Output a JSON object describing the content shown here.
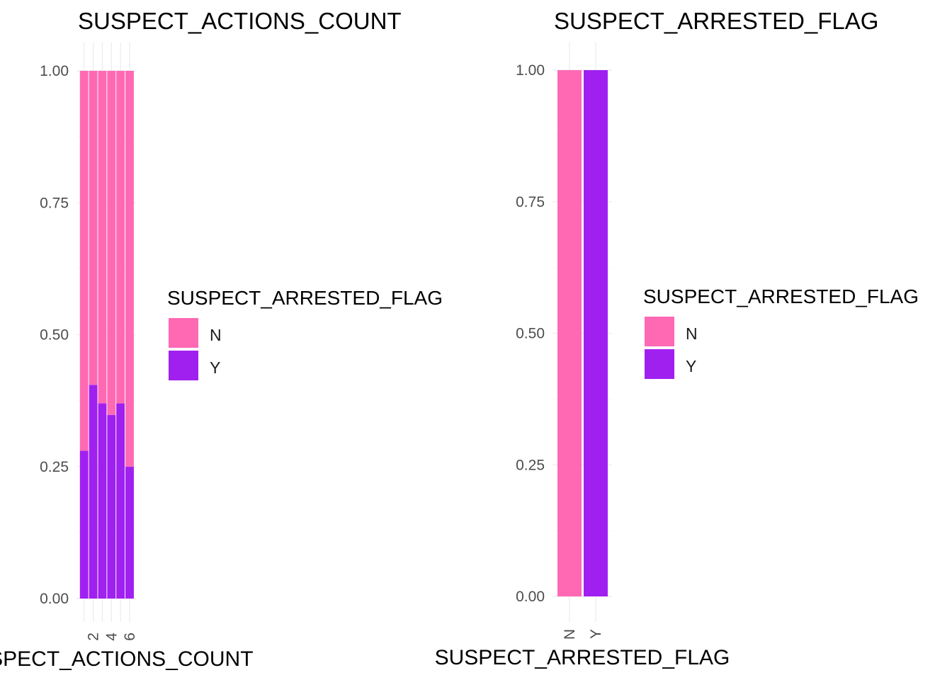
{
  "colors": {
    "N": "#FF69B4",
    "Y": "#A020F0"
  },
  "chart_data": [
    {
      "type": "bar",
      "stacked": true,
      "title": "SUSPECT_ACTIONS_COUNT",
      "xlabel": "SUSPECT_ACTIONS_COUNT",
      "ylabel": "",
      "ylim": [
        0,
        1
      ],
      "y_ticks": [
        "0.00",
        "0.25",
        "0.50",
        "0.75",
        "1.00"
      ],
      "x": [
        1,
        2,
        3,
        4,
        5,
        6
      ],
      "x_ticks": [
        "2",
        "4",
        "6"
      ],
      "series": [
        {
          "name": "Y",
          "values": [
            0.28,
            0.405,
            0.37,
            0.348,
            0.37,
            0.25
          ]
        },
        {
          "name": "N",
          "values": [
            0.72,
            0.595,
            0.63,
            0.652,
            0.63,
            0.75
          ]
        }
      ],
      "grid": true,
      "legend": {
        "title": "SUSPECT_ARRESTED_FLAG",
        "entries": [
          "N",
          "Y"
        ],
        "placement": "right"
      }
    },
    {
      "type": "bar",
      "stacked": true,
      "title": "SUSPECT_ARRESTED_FLAG",
      "xlabel": "SUSPECT_ARRESTED_FLAG",
      "ylabel": "",
      "ylim": [
        0,
        1
      ],
      "y_ticks": [
        "0.00",
        "0.25",
        "0.50",
        "0.75",
        "1.00"
      ],
      "categories": [
        "N",
        "Y"
      ],
      "series": [
        {
          "name": "Y",
          "values": [
            0,
            1
          ]
        },
        {
          "name": "N",
          "values": [
            1,
            0
          ]
        }
      ],
      "grid": true,
      "legend": {
        "title": "SUSPECT_ARRESTED_FLAG",
        "entries": [
          "N",
          "Y"
        ],
        "placement": "right"
      }
    }
  ]
}
